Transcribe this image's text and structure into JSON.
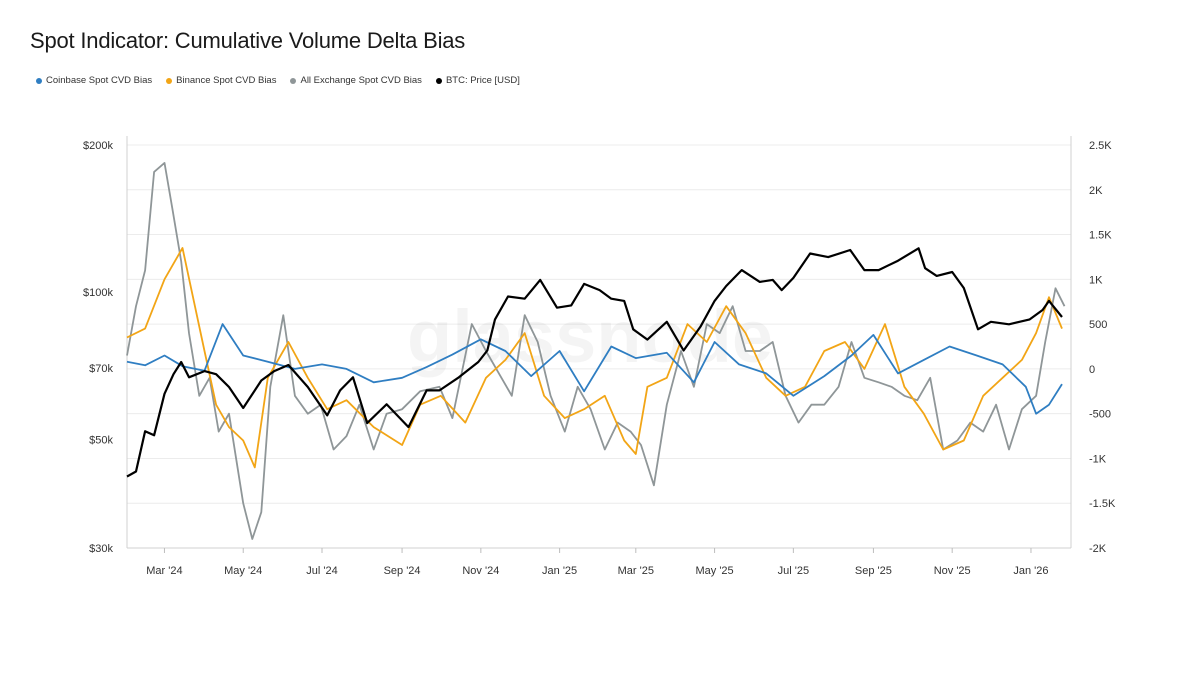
{
  "title": "Spot Indicator: Cumulative Volume Delta Bias",
  "watermark": "glassnode",
  "legend": [
    {
      "label": "Coinbase Spot CVD Bias",
      "color": "#2f7ec2"
    },
    {
      "label": "Binance Spot CVD Bias",
      "color": "#f2a516"
    },
    {
      "label": "All Exchange Spot CVD Bias",
      "color": "#8f9698"
    },
    {
      "label": "BTC: Price [USD]",
      "color": "#000000"
    }
  ],
  "chart_data": {
    "type": "line",
    "title": "Spot Indicator: Cumulative Volume Delta Bias",
    "x_range": [
      "2024-02-01",
      "2026-02-01"
    ],
    "x_ticks": [
      "Mar '24",
      "May '24",
      "Jul '24",
      "Sep '24",
      "Nov '24",
      "Jan '25",
      "Mar '25",
      "May '25",
      "Jul '25",
      "Sep '25",
      "Nov '25",
      "Jan '26"
    ],
    "y_left": {
      "scale": "log",
      "range": [
        30000,
        200000
      ],
      "ticks": [
        "$30k",
        "$50k",
        "$70k",
        "$100k",
        "$200k"
      ],
      "tick_values": [
        30000,
        50000,
        70000,
        100000,
        200000
      ]
    },
    "y_right": {
      "scale": "linear",
      "range": [
        -2000,
        2500
      ],
      "ticks": [
        "-2K",
        "-1.5K",
        "-1K",
        "-500",
        "0",
        "500",
        "1K",
        "1.5K",
        "2K",
        "2.5K"
      ],
      "tick_values": [
        -2000,
        -1500,
        -1000,
        -500,
        0,
        500,
        1000,
        1500,
        2000,
        2500
      ]
    },
    "grid": "horizontal",
    "legend_position": "top-left",
    "series": [
      {
        "name": "BTC: Price [USD]",
        "axis": "left",
        "color": "#000000",
        "x": [
          "2024-02-01",
          "2024-02-08",
          "2024-02-15",
          "2024-02-22",
          "2024-03-01",
          "2024-03-08",
          "2024-03-14",
          "2024-03-20",
          "2024-04-01",
          "2024-04-10",
          "2024-04-20",
          "2024-05-01",
          "2024-05-15",
          "2024-05-25",
          "2024-06-05",
          "2024-06-20",
          "2024-07-05",
          "2024-07-15",
          "2024-07-25",
          "2024-08-05",
          "2024-08-20",
          "2024-09-06",
          "2024-09-20",
          "2024-09-30",
          "2024-10-15",
          "2024-10-30",
          "2024-11-06",
          "2024-11-12",
          "2024-11-22",
          "2024-12-05",
          "2024-12-17",
          "2024-12-30",
          "2025-01-10",
          "2025-01-20",
          "2025-02-01",
          "2025-02-10",
          "2025-02-20",
          "2025-02-27",
          "2025-03-10",
          "2025-03-25",
          "2025-04-07",
          "2025-04-20",
          "2025-05-01",
          "2025-05-10",
          "2025-05-22",
          "2025-06-05",
          "2025-06-15",
          "2025-06-22",
          "2025-07-01",
          "2025-07-14",
          "2025-07-28",
          "2025-08-14",
          "2025-08-25",
          "2025-09-05",
          "2025-09-20",
          "2025-10-06",
          "2025-10-11",
          "2025-10-20",
          "2025-11-01",
          "2025-11-10",
          "2025-11-21",
          "2025-12-01",
          "2025-12-15",
          "2025-12-31",
          "2026-01-10",
          "2026-01-15",
          "2026-01-25"
        ],
        "y": [
          42000,
          43000,
          52000,
          51000,
          62000,
          68000,
          72000,
          67000,
          69000,
          68000,
          64000,
          58000,
          66000,
          69000,
          71000,
          64000,
          56000,
          63000,
          67000,
          54000,
          59000,
          53000,
          63000,
          63000,
          67000,
          72000,
          76000,
          88000,
          98000,
          97000,
          106000,
          93000,
          94000,
          104000,
          101000,
          97000,
          96000,
          84000,
          80000,
          87000,
          76000,
          85000,
          96000,
          103000,
          111000,
          105000,
          106000,
          101000,
          107000,
          120000,
          118000,
          122000,
          111000,
          111000,
          116000,
          123000,
          112000,
          108000,
          110000,
          102000,
          84000,
          87000,
          86000,
          88000,
          92000,
          96000,
          89000
        ]
      },
      {
        "name": "Coinbase Spot CVD Bias",
        "axis": "right",
        "color": "#2f7ec2",
        "x": [
          "2024-02-01",
          "2024-02-15",
          "2024-03-01",
          "2024-03-15",
          "2024-04-01",
          "2024-04-15",
          "2024-05-01",
          "2024-05-20",
          "2024-06-10",
          "2024-07-01",
          "2024-07-20",
          "2024-08-10",
          "2024-09-01",
          "2024-09-20",
          "2024-10-10",
          "2024-11-01",
          "2024-11-20",
          "2024-12-10",
          "2025-01-01",
          "2025-01-20",
          "2025-02-10",
          "2025-03-01",
          "2025-03-25",
          "2025-04-15",
          "2025-05-01",
          "2025-05-20",
          "2025-06-10",
          "2025-07-01",
          "2025-07-25",
          "2025-08-15",
          "2025-09-01",
          "2025-09-20",
          "2025-10-10",
          "2025-10-30",
          "2025-11-20",
          "2025-12-10",
          "2025-12-28",
          "2026-01-05",
          "2026-01-15",
          "2026-01-25"
        ],
        "y": [
          80,
          40,
          150,
          30,
          -20,
          500,
          150,
          80,
          0,
          50,
          0,
          -150,
          -100,
          20,
          160,
          330,
          200,
          -80,
          200,
          -250,
          250,
          120,
          180,
          -150,
          300,
          50,
          -50,
          -300,
          -80,
          150,
          380,
          -50,
          100,
          250,
          150,
          50,
          -200,
          -500,
          -400,
          -170
        ]
      },
      {
        "name": "Binance Spot CVD Bias",
        "axis": "right",
        "color": "#f2a516",
        "x": [
          "2024-02-01",
          "2024-02-15",
          "2024-03-01",
          "2024-03-15",
          "2024-04-01",
          "2024-04-10",
          "2024-04-20",
          "2024-05-01",
          "2024-05-10",
          "2024-05-20",
          "2024-06-05",
          "2024-06-20",
          "2024-07-05",
          "2024-07-20",
          "2024-08-10",
          "2024-09-01",
          "2024-09-15",
          "2024-10-01",
          "2024-10-20",
          "2024-11-05",
          "2024-11-20",
          "2024-12-05",
          "2024-12-20",
          "2025-01-05",
          "2025-01-20",
          "2025-02-05",
          "2025-02-20",
          "2025-03-01",
          "2025-03-10",
          "2025-03-25",
          "2025-04-10",
          "2025-04-25",
          "2025-05-10",
          "2025-05-25",
          "2025-06-10",
          "2025-06-25",
          "2025-07-10",
          "2025-07-25",
          "2025-08-10",
          "2025-08-25",
          "2025-09-10",
          "2025-09-25",
          "2025-10-10",
          "2025-10-25",
          "2025-11-10",
          "2025-11-25",
          "2025-12-10",
          "2025-12-25",
          "2026-01-05",
          "2026-01-15",
          "2026-01-25"
        ],
        "y": [
          350,
          450,
          1000,
          1350,
          200,
          -400,
          -650,
          -800,
          -1100,
          -100,
          300,
          -100,
          -450,
          -350,
          -650,
          -850,
          -400,
          -300,
          -600,
          -100,
          100,
          400,
          -300,
          -550,
          -450,
          -300,
          -800,
          -950,
          -200,
          -100,
          500,
          300,
          700,
          400,
          -100,
          -300,
          -200,
          200,
          300,
          0,
          500,
          -200,
          -500,
          -900,
          -800,
          -300,
          -100,
          100,
          400,
          800,
          450
        ]
      },
      {
        "name": "All Exchange Spot CVD Bias",
        "axis": "right",
        "color": "#8f9698",
        "x": [
          "2024-02-01",
          "2024-02-08",
          "2024-02-15",
          "2024-02-22",
          "2024-03-01",
          "2024-03-07",
          "2024-03-14",
          "2024-03-20",
          "2024-03-28",
          "2024-04-05",
          "2024-04-12",
          "2024-04-20",
          "2024-05-01",
          "2024-05-08",
          "2024-05-15",
          "2024-05-22",
          "2024-06-01",
          "2024-06-10",
          "2024-06-20",
          "2024-06-30",
          "2024-07-10",
          "2024-07-20",
          "2024-07-30",
          "2024-08-10",
          "2024-08-20",
          "2024-09-01",
          "2024-09-15",
          "2024-09-30",
          "2024-10-10",
          "2024-10-25",
          "2024-11-05",
          "2024-11-15",
          "2024-11-25",
          "2024-12-05",
          "2024-12-15",
          "2024-12-25",
          "2025-01-05",
          "2025-01-15",
          "2025-01-25",
          "2025-02-05",
          "2025-02-15",
          "2025-02-25",
          "2025-03-05",
          "2025-03-15",
          "2025-03-25",
          "2025-04-05",
          "2025-04-15",
          "2025-04-25",
          "2025-05-05",
          "2025-05-15",
          "2025-05-25",
          "2025-06-05",
          "2025-06-15",
          "2025-06-25",
          "2025-07-05",
          "2025-07-15",
          "2025-07-25",
          "2025-08-05",
          "2025-08-15",
          "2025-08-25",
          "2025-09-05",
          "2025-09-15",
          "2025-09-25",
          "2025-10-05",
          "2025-10-15",
          "2025-10-25",
          "2025-11-05",
          "2025-11-15",
          "2025-11-25",
          "2025-12-05",
          "2025-12-15",
          "2025-12-25",
          "2026-01-05",
          "2026-01-12",
          "2026-01-20",
          "2026-01-27"
        ],
        "y": [
          150,
          700,
          1100,
          2200,
          2300,
          1800,
          1200,
          400,
          -300,
          -100,
          -700,
          -500,
          -1500,
          -1900,
          -1600,
          -200,
          600,
          -300,
          -500,
          -400,
          -900,
          -750,
          -400,
          -900,
          -500,
          -450,
          -250,
          -200,
          -550,
          500,
          200,
          -50,
          -300,
          600,
          300,
          -300,
          -700,
          -200,
          -450,
          -900,
          -600,
          -700,
          -850,
          -1300,
          -400,
          200,
          -200,
          500,
          400,
          700,
          200,
          200,
          300,
          -300,
          -600,
          -400,
          -400,
          -200,
          300,
          -100,
          -150,
          -200,
          -300,
          -350,
          -100,
          -900,
          -800,
          -600,
          -700,
          -400,
          -900,
          -450,
          -300,
          300,
          900,
          700
        ]
      }
    ]
  }
}
